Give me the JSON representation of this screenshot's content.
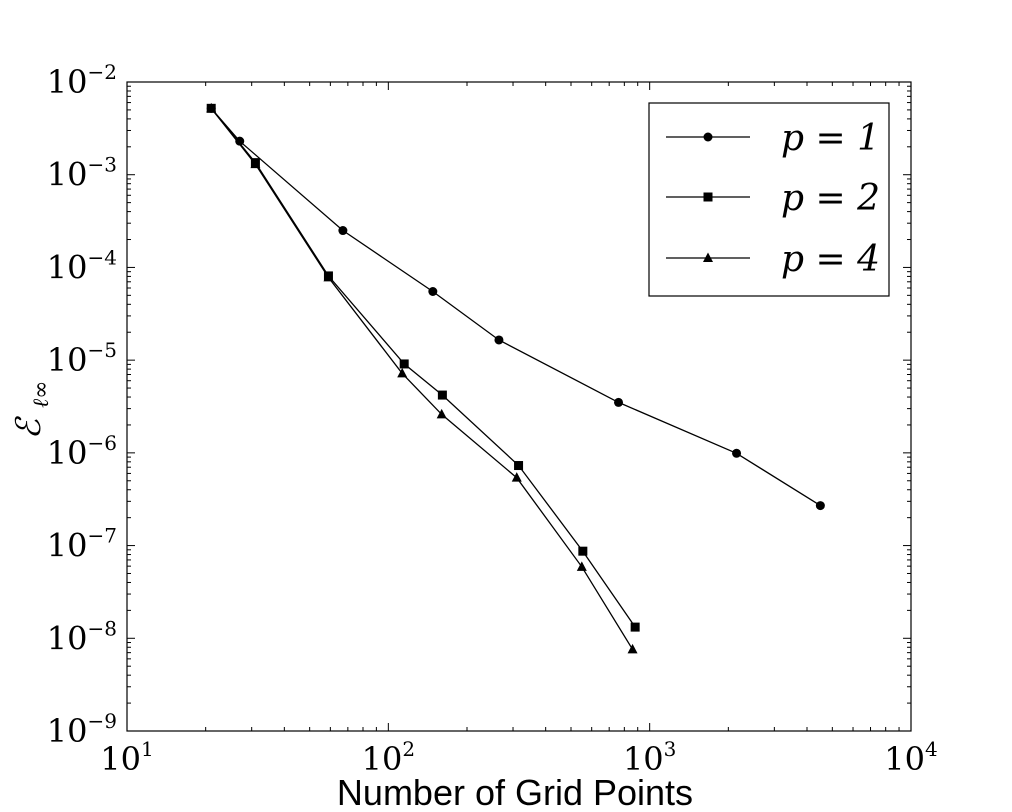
{
  "chart_data": {
    "type": "line",
    "xscale": "log",
    "yscale": "log",
    "xlim": [
      10,
      10000
    ],
    "ylim": [
      1e-09,
      0.01
    ],
    "xlabel": "Number of Grid Points",
    "ylabel": "ℰ_ℓ∞",
    "ylabel_main": "ℰ",
    "ylabel_sub": "ℓ∞",
    "legend_position": "upper-right",
    "grid": false,
    "x_ticks": [
      {
        "base": "10",
        "exp": "1",
        "value": 10
      },
      {
        "base": "10",
        "exp": "2",
        "value": 100
      },
      {
        "base": "10",
        "exp": "3",
        "value": 1000
      },
      {
        "base": "10",
        "exp": "4",
        "value": 10000
      }
    ],
    "y_ticks": [
      {
        "base": "10",
        "exp": "−2",
        "value": 0.01
      },
      {
        "base": "10",
        "exp": "−3",
        "value": 0.001
      },
      {
        "base": "10",
        "exp": "−4",
        "value": 0.0001
      },
      {
        "base": "10",
        "exp": "−5",
        "value": 1e-05
      },
      {
        "base": "10",
        "exp": "−6",
        "value": 1e-06
      },
      {
        "base": "10",
        "exp": "−7",
        "value": 1e-07
      },
      {
        "base": "10",
        "exp": "−8",
        "value": 1e-08
      },
      {
        "base": "10",
        "exp": "−9",
        "value": 1e-09
      }
    ],
    "series": [
      {
        "name": "p = 1",
        "marker": "circle",
        "points": [
          [
            21,
            0.0052
          ],
          [
            27,
            0.0023
          ],
          [
            67,
            0.00025
          ],
          [
            148,
            5.5e-05
          ],
          [
            265,
            1.65e-05
          ],
          [
            760,
            3.5e-06
          ],
          [
            2150,
            9.9e-07
          ],
          [
            4500,
            2.7e-07
          ]
        ]
      },
      {
        "name": "p = 2",
        "marker": "square",
        "points": [
          [
            21,
            0.0052
          ],
          [
            31,
            0.00135
          ],
          [
            59,
            8.1e-05
          ],
          [
            115,
            9.1e-06
          ],
          [
            161,
            4.2e-06
          ],
          [
            315,
            7.3e-07
          ],
          [
            555,
            8.7e-08
          ],
          [
            880,
            1.32e-08
          ]
        ]
      },
      {
        "name": "p = 4",
        "marker": "triangle",
        "points": [
          [
            21,
            0.0052
          ],
          [
            31,
            0.0013
          ],
          [
            59,
            7.8e-05
          ],
          [
            113,
            7.2e-06
          ],
          [
            160,
            2.6e-06
          ],
          [
            310,
            5.4e-07
          ],
          [
            550,
            5.9e-08
          ],
          [
            860,
            7.6e-09
          ]
        ]
      }
    ]
  }
}
